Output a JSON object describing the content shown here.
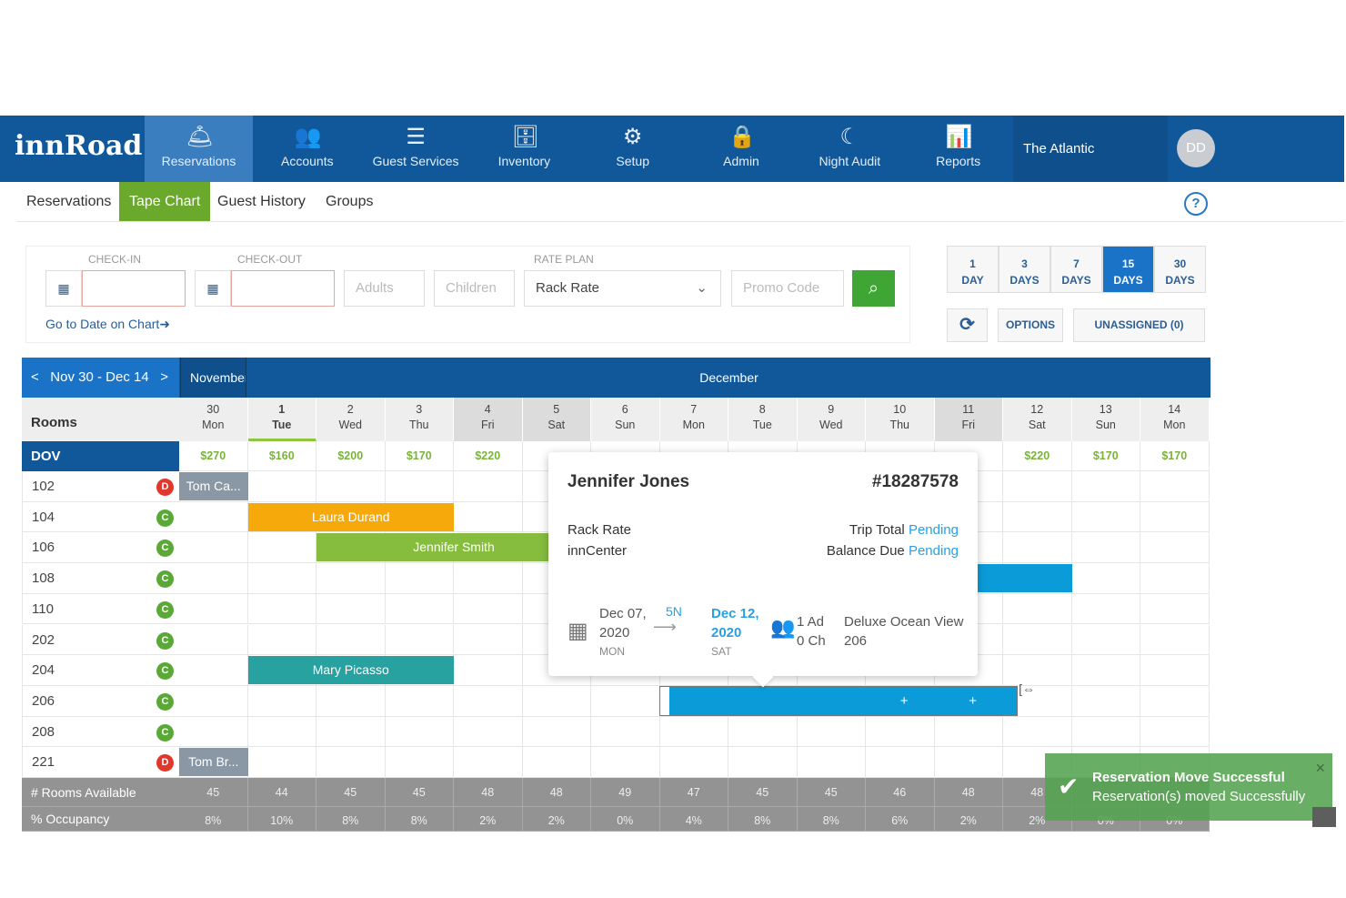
{
  "app": {
    "logo": "innRoad",
    "property": "The Atlantic",
    "avatar_initials": "DD",
    "help": "?"
  },
  "topnav": [
    {
      "label": "Reservations",
      "icon": "bell-icon",
      "glyph": "🛎",
      "active": true
    },
    {
      "label": "Accounts",
      "icon": "users-icon",
      "glyph": "👥"
    },
    {
      "label": "Guest Services",
      "icon": "checklist-icon",
      "glyph": "☰"
    },
    {
      "label": "Inventory",
      "icon": "cash-register-icon",
      "glyph": "🗄"
    },
    {
      "label": "Setup",
      "icon": "gear-icon",
      "glyph": "⚙"
    },
    {
      "label": "Admin",
      "icon": "lock-icon",
      "glyph": "🔒"
    },
    {
      "label": "Night Audit",
      "icon": "moon-icon",
      "glyph": "☾"
    },
    {
      "label": "Reports",
      "icon": "bar-chart-icon",
      "glyph": "📊"
    }
  ],
  "subnav": [
    {
      "label": "Reservations"
    },
    {
      "label": "Tape Chart",
      "active": true
    },
    {
      "label": "Guest History"
    },
    {
      "label": "Groups"
    }
  ],
  "search": {
    "checkin_label": "CHECK-IN",
    "checkout_label": "CHECK-OUT",
    "checkin_value": "",
    "checkout_value": "",
    "adults_placeholder": "Adults",
    "children_placeholder": "Children",
    "rate_plan_label": "RATE PLAN",
    "rate_plan_value": "Rack Rate",
    "promo_placeholder": "Promo Code",
    "goto_link": "Go to Date on Chart➜"
  },
  "day_buttons": [
    {
      "n": "1",
      "u": "DAY"
    },
    {
      "n": "3",
      "u": "DAYS"
    },
    {
      "n": "7",
      "u": "DAYS"
    },
    {
      "n": "15",
      "u": "DAYS",
      "active": true
    },
    {
      "n": "30",
      "u": "DAYS"
    }
  ],
  "controls": {
    "options": "OPTIONS",
    "unassigned": "UNASSIGNED (0)"
  },
  "chart": {
    "range": "Nov 30 - Dec 14",
    "month1": "November",
    "month2": "December",
    "rooms_header": "Rooms",
    "room_type": "DOV",
    "dates": [
      {
        "d": "30",
        "w": "Mon"
      },
      {
        "d": "1",
        "w": "Tue",
        "today": true
      },
      {
        "d": "2",
        "w": "Wed"
      },
      {
        "d": "3",
        "w": "Thu"
      },
      {
        "d": "4",
        "w": "Fri",
        "dark": true
      },
      {
        "d": "5",
        "w": "Sat",
        "dark": true
      },
      {
        "d": "6",
        "w": "Sun"
      },
      {
        "d": "7",
        "w": "Mon"
      },
      {
        "d": "8",
        "w": "Tue"
      },
      {
        "d": "9",
        "w": "Wed"
      },
      {
        "d": "10",
        "w": "Thu"
      },
      {
        "d": "11",
        "w": "Fri",
        "dark": true
      },
      {
        "d": "12",
        "w": "Sat"
      },
      {
        "d": "13",
        "w": "Sun"
      },
      {
        "d": "14",
        "w": "Mon"
      }
    ],
    "rates": [
      "$270",
      "$160",
      "$200",
      "$170",
      "$220",
      "",
      "",
      "",
      "",
      "",
      "",
      "",
      "$220",
      "$170",
      "$170"
    ],
    "rooms": [
      {
        "n": "102",
        "s": "D"
      },
      {
        "n": "104",
        "s": "C"
      },
      {
        "n": "106",
        "s": "C"
      },
      {
        "n": "108",
        "s": "C"
      },
      {
        "n": "110",
        "s": "C"
      },
      {
        "n": "202",
        "s": "C"
      },
      {
        "n": "204",
        "s": "C"
      },
      {
        "n": "206",
        "s": "C"
      },
      {
        "n": "208",
        "s": "C"
      },
      {
        "n": "221",
        "s": "D"
      }
    ],
    "status_colors": {
      "D": "#e2372b",
      "C": "#5aa936"
    },
    "reservations": [
      {
        "room": 0,
        "start": 0,
        "len": 1,
        "name": "Tom Ca...",
        "color": "#8a97a5"
      },
      {
        "room": 1,
        "start": 1,
        "len": 3,
        "name": "Laura Durand",
        "color": "#f5a90a"
      },
      {
        "room": 2,
        "start": 2,
        "len": 4,
        "name": "Jennifer Smith",
        "color": "#86bd3f"
      },
      {
        "room": 3,
        "start": 8,
        "len": 5,
        "name": "",
        "color": "#0a9bd8"
      },
      {
        "room": 6,
        "start": 1,
        "len": 3,
        "name": "Mary Picasso",
        "color": "#27a2a0"
      },
      {
        "room": 7,
        "start": 7,
        "len": 5.2,
        "name": "",
        "color": "#0a9bd8",
        "selected": true
      },
      {
        "room": 9,
        "start": 0,
        "len": 1,
        "name": "Tom Br...",
        "color": "#8a97a5"
      }
    ],
    "rooms_available_label": "# Rooms Available",
    "occupancy_label": "% Occupancy",
    "rooms_available": [
      "45",
      "44",
      "45",
      "45",
      "48",
      "48",
      "49",
      "47",
      "45",
      "45",
      "46",
      "48",
      "48",
      "",
      ""
    ],
    "occupancy": [
      "8%",
      "10%",
      "8%",
      "8%",
      "2%",
      "2%",
      "0%",
      "4%",
      "8%",
      "8%",
      "6%",
      "2%",
      "2%",
      "0%",
      "0%"
    ]
  },
  "popup": {
    "guest": "Jennifer Jones",
    "conf": "#18287578",
    "rate_plan": "Rack Rate",
    "source": "innCenter",
    "trip_total_label": "Trip Total",
    "trip_total": "Pending",
    "balance_label": "Balance Due",
    "balance": "Pending",
    "checkin_date": "Dec 07,",
    "checkin_year": "2020",
    "checkin_day": "MON",
    "nights": "5N",
    "checkout_date": "Dec 12,",
    "checkout_year": "2020",
    "checkout_day": "SAT",
    "adults": "1 Ad",
    "children": "0 Ch",
    "room_type": "Deluxe Ocean View",
    "room": "206"
  },
  "toast": {
    "title": "Reservation Move Successful",
    "message": "Reservation(s) moved Successfully"
  }
}
